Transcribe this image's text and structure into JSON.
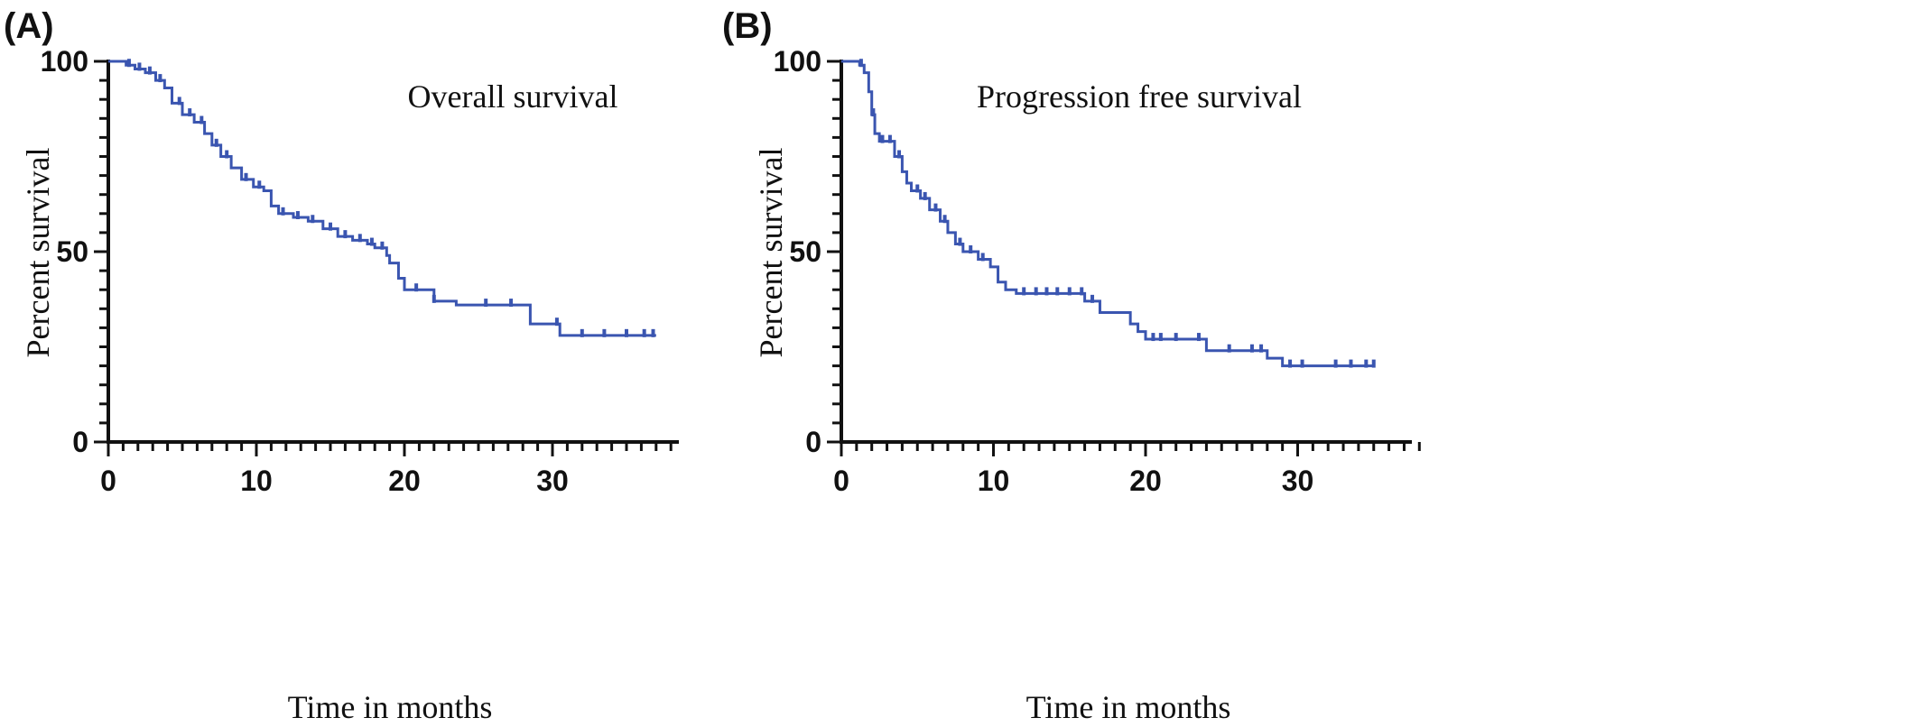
{
  "chart_data": [
    {
      "type": "line",
      "step": true,
      "panel_label": "(A)",
      "title": "Overall survival",
      "xlabel": "Time in months",
      "ylabel": "Percent survival",
      "xlim": [
        0,
        38
      ],
      "ylim": [
        0,
        100
      ],
      "x_ticks": [
        0,
        10,
        20,
        30
      ],
      "y_ticks": [
        0,
        50,
        100
      ],
      "color": "#3a55b0",
      "grid": false,
      "legend": "none",
      "series": [
        {
          "x": [
            0,
            1.2,
            1.8,
            2.5,
            3.2,
            3.8,
            4.3,
            5.0,
            5.8,
            6.5,
            7.0,
            7.6,
            8.3,
            9.0,
            9.8,
            10.5,
            11.0,
            11.5,
            12.5,
            13.5,
            14.5,
            15.5,
            16.5,
            17.5,
            18.0,
            18.8,
            19.0,
            19.6,
            20.0,
            22.0,
            23.5,
            28.5,
            30.5,
            37.0
          ],
          "y": [
            100,
            99,
            98,
            97,
            95,
            93,
            89,
            86,
            84,
            81,
            78,
            75,
            72,
            69,
            67,
            66,
            62,
            60,
            59,
            58,
            56,
            54,
            53,
            52,
            51,
            49,
            47,
            43,
            40,
            37,
            36,
            31,
            28,
            28
          ]
        }
      ],
      "censor_x": [
        1.4,
        2.1,
        2.8,
        3.5,
        4.8,
        5.5,
        6.3,
        7.3,
        8.0,
        9.3,
        10.2,
        11.8,
        12.8,
        13.8,
        15.0,
        16.0,
        17.0,
        17.8,
        18.5,
        20.8,
        22.0,
        25.5,
        27.2,
        30.3,
        32.0,
        33.5,
        35.0,
        36.2,
        36.8
      ]
    },
    {
      "type": "line",
      "step": true,
      "panel_label": "(B)",
      "title": "Progression free survival",
      "xlabel": "Time in months",
      "ylabel": "Percent survival",
      "xlim": [
        0,
        38
      ],
      "ylim": [
        0,
        100
      ],
      "x_ticks": [
        0,
        10,
        20,
        30
      ],
      "y_ticks": [
        0,
        50,
        100
      ],
      "color": "#3a55b0",
      "grid": false,
      "legend": "none",
      "series": [
        {
          "x": [
            0,
            1.2,
            1.5,
            1.8,
            2.0,
            2.2,
            2.5,
            3.5,
            4.0,
            4.3,
            4.6,
            5.2,
            5.8,
            6.5,
            7.0,
            7.5,
            8.0,
            9.0,
            9.8,
            10.3,
            10.8,
            11.5,
            16.0,
            17.0,
            19.0,
            19.5,
            20.0,
            24.0,
            28.0,
            29.0,
            35.0
          ],
          "y": [
            100,
            99,
            97,
            92,
            86,
            81,
            79,
            75,
            71,
            68,
            66,
            64,
            61,
            58,
            55,
            52,
            50,
            48,
            46,
            42,
            40,
            39,
            37,
            34,
            31,
            29,
            27,
            24,
            22,
            20,
            20
          ]
        }
      ],
      "censor_x": [
        1.3,
        2.1,
        2.7,
        3.2,
        3.8,
        5.0,
        5.5,
        6.2,
        6.8,
        7.8,
        8.5,
        9.3,
        12.0,
        12.8,
        13.5,
        14.2,
        15.0,
        15.8,
        16.5,
        20.5,
        21.0,
        22.0,
        23.5,
        25.5,
        27.0,
        27.6,
        29.5,
        30.3,
        32.5,
        33.5,
        34.5,
        35.0
      ]
    }
  ]
}
